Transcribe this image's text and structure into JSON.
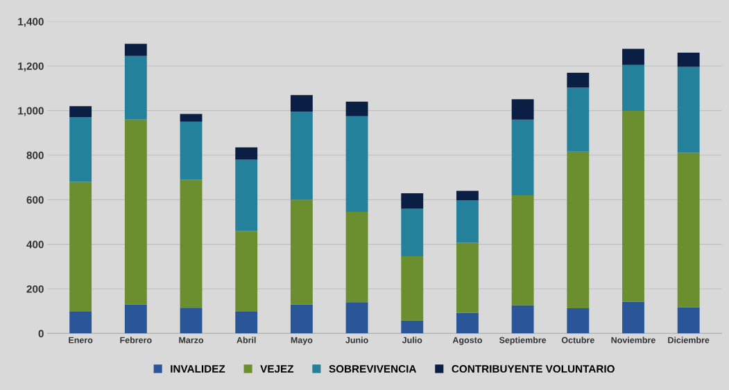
{
  "chart_data": {
    "type": "bar",
    "stacked": true,
    "categories": [
      "Enero",
      "Febrero",
      "Marzo",
      "Abril",
      "Mayo",
      "Junio",
      "Julio",
      "Agosto",
      "Septiembre",
      "Octubre",
      "Noviembre",
      "Diciembre"
    ],
    "series": [
      {
        "name": "INVALIDEZ",
        "color": "#2a5597",
        "values": [
          100,
          130,
          115,
          100,
          130,
          140,
          58,
          92,
          127,
          113,
          142,
          117
        ]
      },
      {
        "name": "VEJEZ",
        "color": "#6b8e2f",
        "values": [
          580,
          830,
          575,
          360,
          470,
          405,
          288,
          315,
          493,
          703,
          857,
          694
        ]
      },
      {
        "name": "SOBREVIVENCIA",
        "color": "#23819c",
        "values": [
          290,
          285,
          260,
          320,
          395,
          430,
          214,
          190,
          339,
          287,
          206,
          385
        ]
      },
      {
        "name": "CONTRIBUYENTE VOLUNTARIO",
        "color": "#0b1f45",
        "values": [
          50,
          55,
          35,
          55,
          75,
          65,
          69,
          43,
          92,
          67,
          72,
          64
        ]
      }
    ],
    "ylim": [
      0,
      1400
    ],
    "yticks": [
      {
        "value": 0,
        "label": "0"
      },
      {
        "value": 200,
        "label": "200"
      },
      {
        "value": 400,
        "label": "400"
      },
      {
        "value": 600,
        "label": "600"
      },
      {
        "value": 800,
        "label": "800"
      },
      {
        "value": 1000,
        "label": "1,000"
      },
      {
        "value": 1200,
        "label": "1,200"
      },
      {
        "value": 1400,
        "label": "1,400"
      }
    ],
    "grid": "y",
    "legend": "bottom"
  }
}
